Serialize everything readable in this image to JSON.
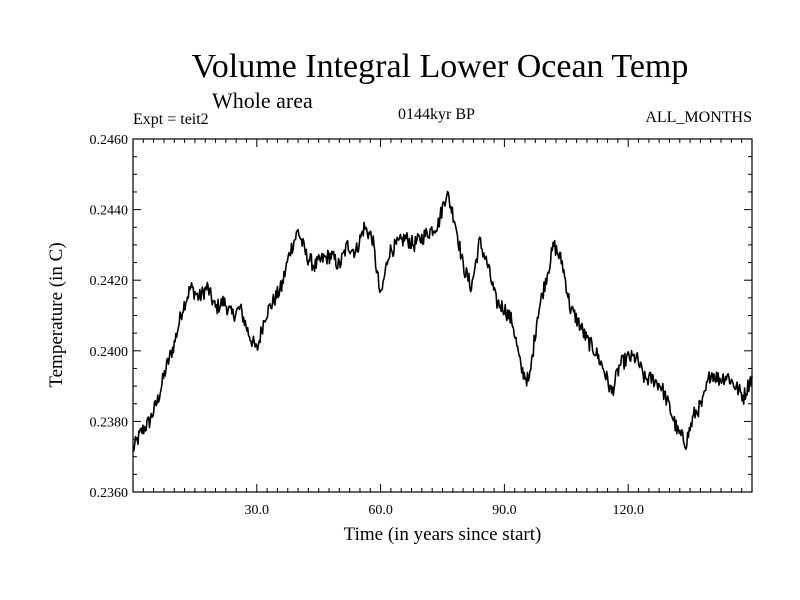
{
  "chart_data": {
    "type": "line",
    "title": "Volume Integral Lower Ocean Temp",
    "subtitle": "Whole area",
    "experiment": "Expt = teit2",
    "period": "0144kyr BP",
    "months": "ALL_MONTHS",
    "xlabel": "Time (in years since start)",
    "ylabel": "Temperature (in C)",
    "xlim": [
      0,
      150
    ],
    "ylim": [
      0.236,
      0.246
    ],
    "xticks": [
      30,
      60,
      90,
      120
    ],
    "xtick_labels": [
      "30.0",
      "60.0",
      "90.0",
      "120.0"
    ],
    "yticks": [
      0.236,
      0.238,
      0.24,
      0.242,
      0.244,
      0.246
    ],
    "ytick_labels": [
      "0.2360",
      "0.2380",
      "0.2400",
      "0.2420",
      "0.2440",
      "0.2460"
    ],
    "grid": false,
    "legend": "none",
    "series": [
      {
        "name": "Volume Integral Lower Ocean Temp",
        "x": [
          0,
          2,
          4,
          6,
          8,
          10,
          12,
          14,
          16,
          18,
          20,
          22,
          24,
          26,
          28,
          30,
          32,
          34,
          36,
          38,
          40,
          42,
          44,
          46,
          48,
          50,
          52,
          54,
          56,
          58,
          60,
          62,
          64,
          66,
          68,
          70,
          72,
          74,
          76,
          78,
          80,
          82,
          84,
          86,
          88,
          90,
          92,
          94,
          96,
          98,
          100,
          102,
          104,
          106,
          108,
          110,
          112,
          114,
          116,
          118,
          120,
          122,
          124,
          126,
          128,
          130,
          132,
          134,
          136,
          138,
          140,
          142,
          144,
          146,
          148,
          150
        ],
        "values": [
          0.2372,
          0.2377,
          0.238,
          0.2386,
          0.2395,
          0.2402,
          0.2412,
          0.2418,
          0.2415,
          0.2418,
          0.2412,
          0.2414,
          0.241,
          0.2412,
          0.2405,
          0.24,
          0.241,
          0.2414,
          0.2418,
          0.2428,
          0.2434,
          0.2427,
          0.2424,
          0.2426,
          0.2427,
          0.2424,
          0.243,
          0.2428,
          0.2435,
          0.2432,
          0.2415,
          0.2428,
          0.243,
          0.2432,
          0.243,
          0.2432,
          0.2434,
          0.2436,
          0.2445,
          0.2437,
          0.2424,
          0.2418,
          0.2431,
          0.2424,
          0.2414,
          0.2412,
          0.2408,
          0.2395,
          0.2391,
          0.241,
          0.242,
          0.243,
          0.2425,
          0.2412,
          0.2408,
          0.2403,
          0.24,
          0.2395,
          0.2388,
          0.2396,
          0.2398,
          0.2398,
          0.2392,
          0.2392,
          0.239,
          0.2384,
          0.2377,
          0.2374,
          0.2382,
          0.2385,
          0.2394,
          0.2392,
          0.2393,
          0.239,
          0.2387,
          0.2393
        ]
      }
    ]
  }
}
